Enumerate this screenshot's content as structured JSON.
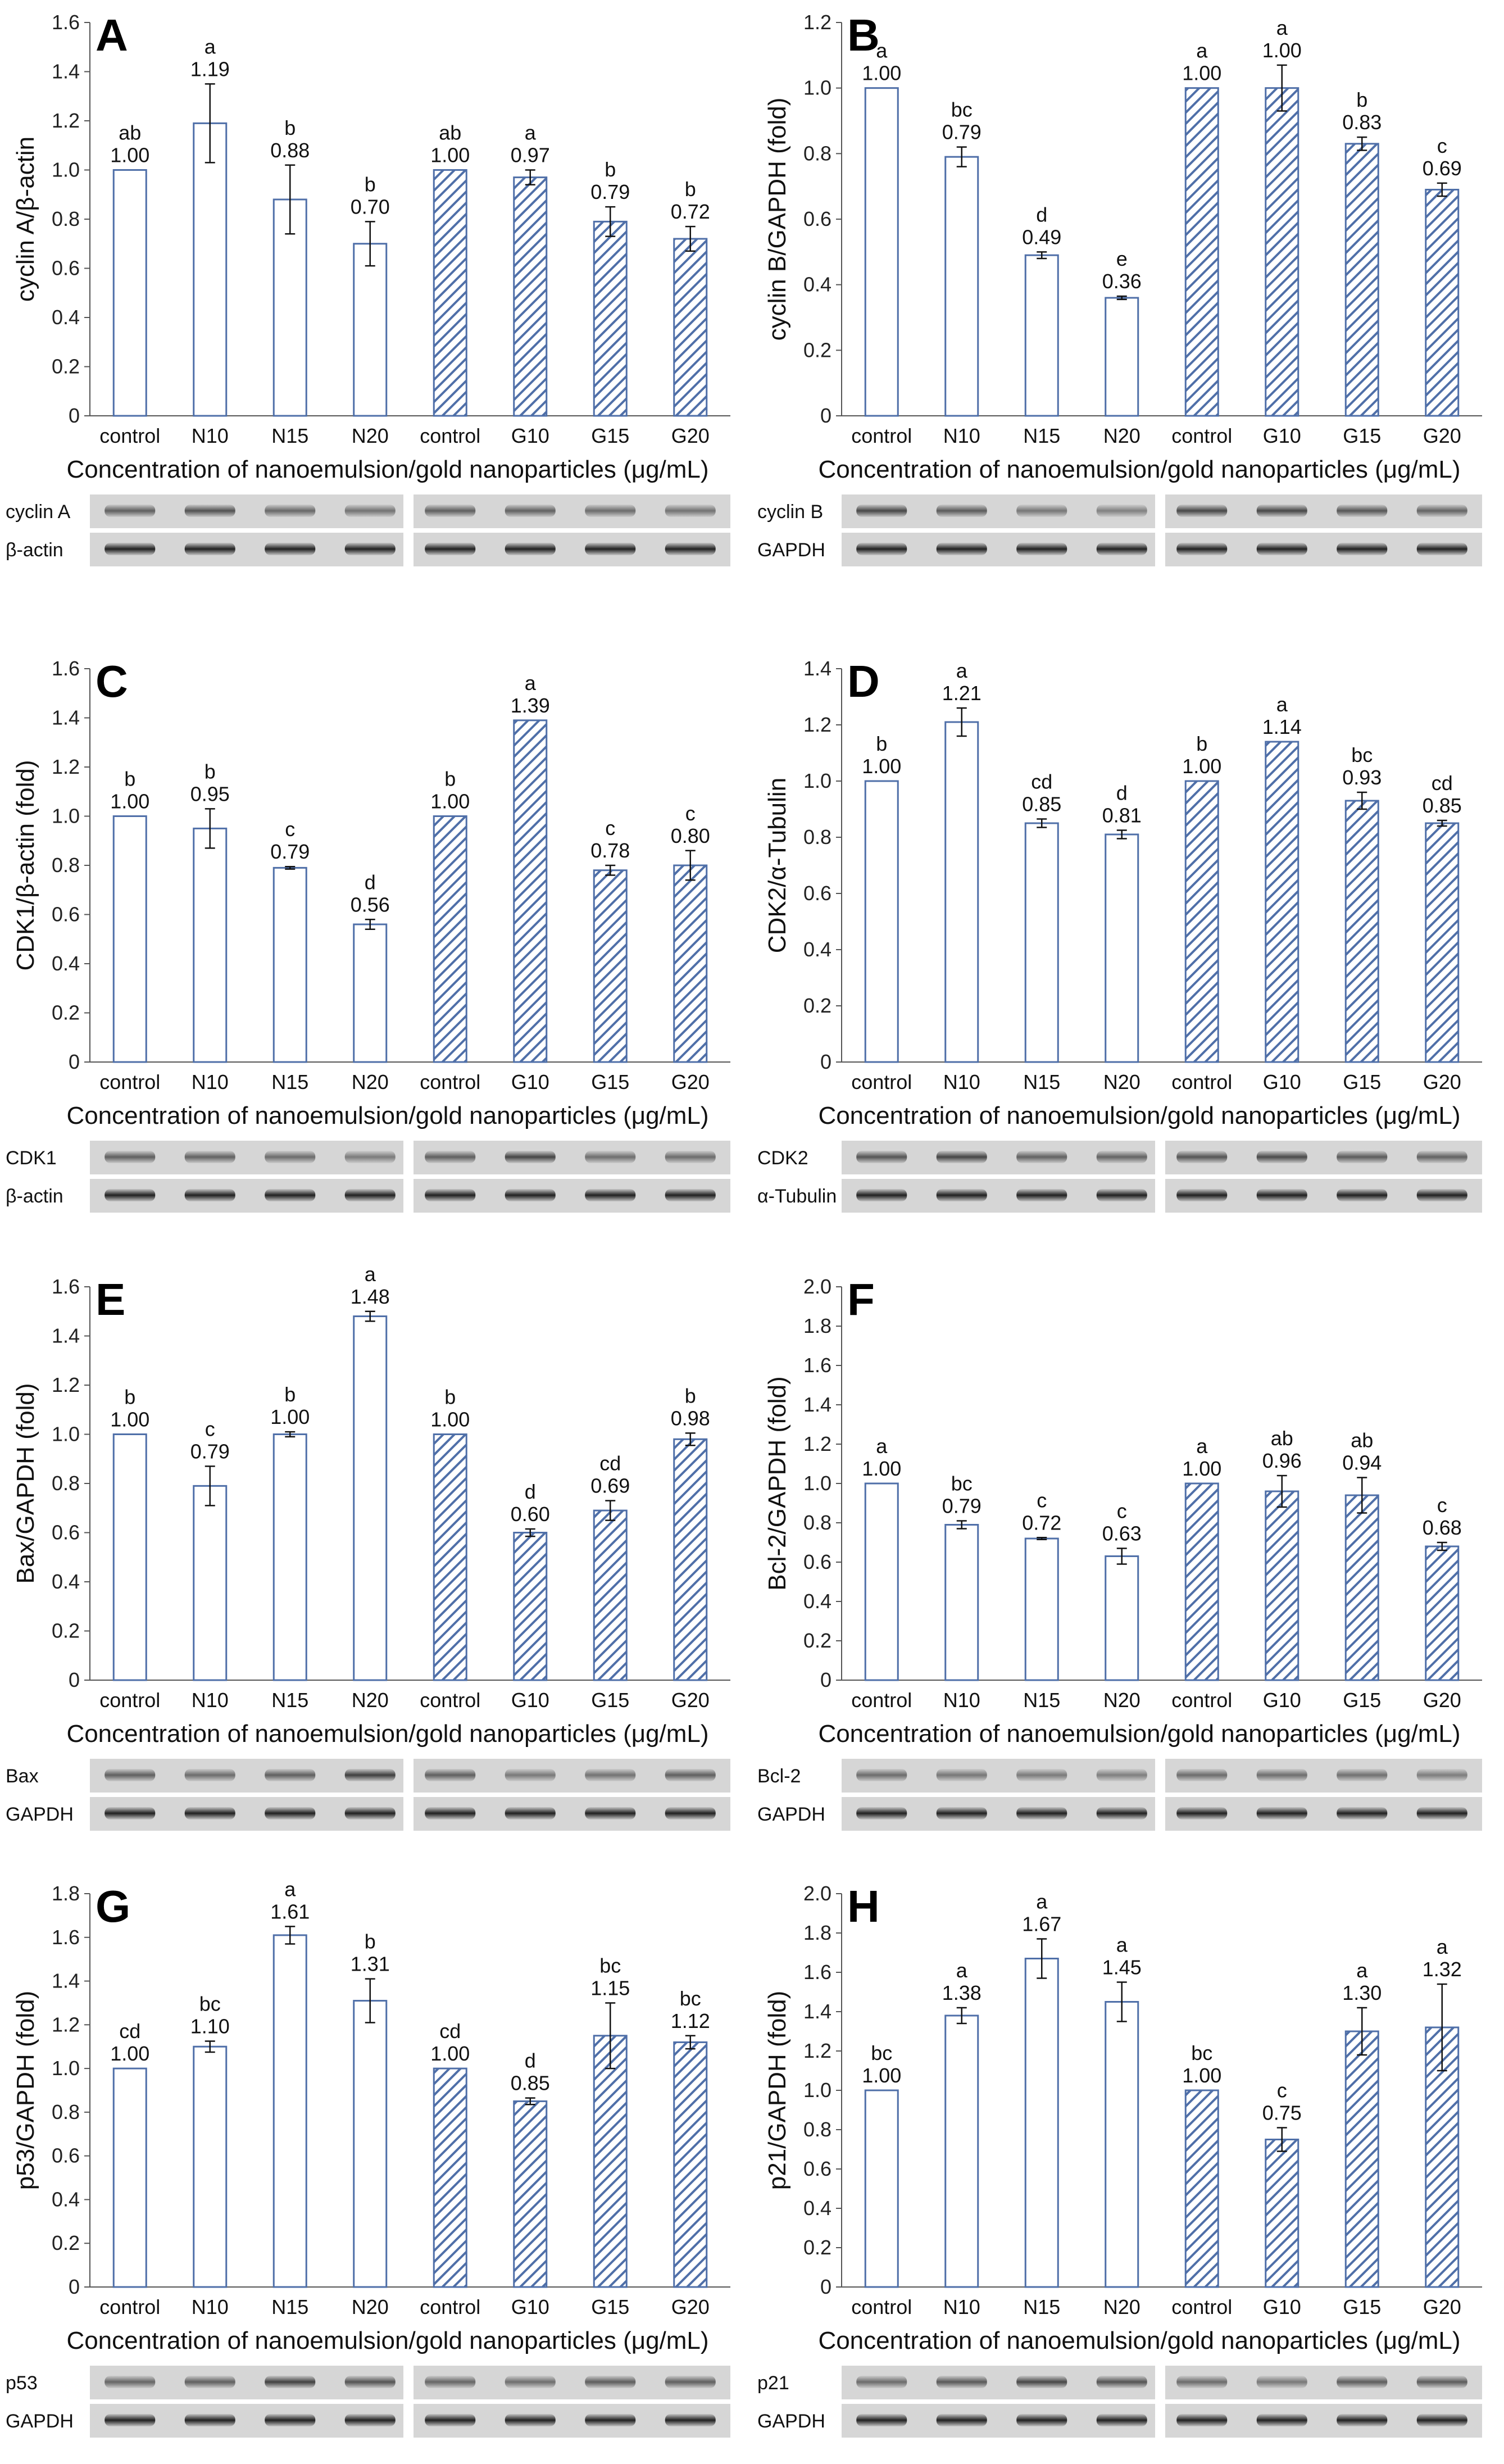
{
  "colors": {
    "bar_edge": "#4f6fa8",
    "hatch": "#4f6fa8",
    "axis": "#555555",
    "text": "#111111"
  },
  "chart_data": [
    {
      "type": "bar",
      "panel": "A",
      "ylabel": "cyclin A/β-actin",
      "xlabel": "Concentration of nanoemulsion/gold nanoparticles (μg/mL)",
      "ylim": [
        0,
        1.6
      ],
      "ytick_labels": [
        "0",
        "0.2",
        "0.4",
        "0.6",
        "0.8",
        "1.0",
        "1.2",
        "1.4",
        "1.6"
      ],
      "categories": [
        "control",
        "N10",
        "N15",
        "N20",
        "control",
        "G10",
        "G15",
        "G20"
      ],
      "values": [
        1.0,
        1.19,
        0.88,
        0.7,
        1.0,
        0.97,
        0.79,
        0.72
      ],
      "value_labels": [
        "1.00",
        "1.19",
        "0.88",
        "0.70",
        "1.00",
        "0.97",
        "0.79",
        "0.72"
      ],
      "errors": [
        0,
        0.16,
        0.14,
        0.09,
        0,
        0.03,
        0.06,
        0.05
      ],
      "significance": [
        "ab",
        "a",
        "b",
        "b",
        "ab",
        "a",
        "b",
        "b"
      ],
      "series": [
        {
          "name": "nanoemulsion",
          "style": "open"
        },
        {
          "name": "gold nanoparticles",
          "style": "hatched"
        }
      ],
      "blot_labels": [
        "cyclin A",
        "β-actin"
      ]
    },
    {
      "type": "bar",
      "panel": "B",
      "ylabel": "cyclin B/GAPDH (fold)",
      "xlabel": "Concentration of nanoemulsion/gold nanoparticles (μg/mL)",
      "ylim": [
        0,
        1.2
      ],
      "ytick_labels": [
        "0",
        "0.2",
        "0.4",
        "0.6",
        "0.8",
        "1.0",
        "1.2"
      ],
      "categories": [
        "control",
        "N10",
        "N15",
        "N20",
        "control",
        "G10",
        "G15",
        "G20"
      ],
      "values": [
        1.0,
        0.79,
        0.49,
        0.36,
        1.0,
        1.0,
        0.83,
        0.69
      ],
      "value_labels": [
        "1.00",
        "0.79",
        "0.49",
        "0.36",
        "1.00",
        "1.00",
        "0.83",
        "0.69"
      ],
      "errors": [
        0,
        0.03,
        0.01,
        0.005,
        0,
        0.07,
        0.02,
        0.02
      ],
      "significance": [
        "a",
        "bc",
        "d",
        "e",
        "a",
        "a",
        "b",
        "c"
      ],
      "series": [
        {
          "name": "nanoemulsion",
          "style": "open"
        },
        {
          "name": "gold nanoparticles",
          "style": "hatched"
        }
      ],
      "blot_labels": [
        "cyclin B",
        "GAPDH"
      ]
    },
    {
      "type": "bar",
      "panel": "C",
      "ylabel": "CDK1/β-actin (fold)",
      "xlabel": "Concentration of nanoemulsion/gold nanoparticles (μg/mL)",
      "ylim": [
        0,
        1.6
      ],
      "ytick_labels": [
        "0",
        "0.2",
        "0.4",
        "0.6",
        "0.8",
        "1.0",
        "1.2",
        "1.4",
        "1.6"
      ],
      "categories": [
        "control",
        "N10",
        "N15",
        "N20",
        "control",
        "G10",
        "G15",
        "G20"
      ],
      "values": [
        1.0,
        0.95,
        0.79,
        0.56,
        1.0,
        1.39,
        0.78,
        0.8
      ],
      "value_labels": [
        "1.00",
        "0.95",
        "0.79",
        "0.56",
        "1.00",
        "1.39",
        "0.78",
        "0.80"
      ],
      "errors": [
        0,
        0.08,
        0.005,
        0.02,
        0,
        0,
        0.02,
        0.06
      ],
      "significance": [
        "b",
        "b",
        "c",
        "d",
        "b",
        "a",
        "c",
        "c"
      ],
      "series": [
        {
          "name": "nanoemulsion",
          "style": "open"
        },
        {
          "name": "gold nanoparticles",
          "style": "hatched"
        }
      ],
      "blot_labels": [
        "CDK1",
        "β-actin"
      ]
    },
    {
      "type": "bar",
      "panel": "D",
      "ylabel": "CDK2/α-Tubulin",
      "xlabel": "Concentration of nanoemulsion/gold nanoparticles (μg/mL)",
      "ylim": [
        0,
        1.4
      ],
      "ytick_labels": [
        "0",
        "0.2",
        "0.4",
        "0.6",
        "0.8",
        "1.0",
        "1.2",
        "1.4"
      ],
      "categories": [
        "control",
        "N10",
        "N15",
        "N20",
        "control",
        "G10",
        "G15",
        "G20"
      ],
      "values": [
        1.0,
        1.21,
        0.85,
        0.81,
        1.0,
        1.14,
        0.93,
        0.85
      ],
      "value_labels": [
        "1.00",
        "1.21",
        "0.85",
        "0.81",
        "1.00",
        "1.14",
        "0.93",
        "0.85"
      ],
      "errors": [
        0,
        0.05,
        0.015,
        0.015,
        0,
        0,
        0.03,
        0.01
      ],
      "significance": [
        "b",
        "a",
        "cd",
        "d",
        "b",
        "a",
        "bc",
        "cd"
      ],
      "series": [
        {
          "name": "nanoemulsion",
          "style": "open"
        },
        {
          "name": "gold nanoparticles",
          "style": "hatched"
        }
      ],
      "blot_labels": [
        "CDK2",
        "α-Tubulin"
      ]
    },
    {
      "type": "bar",
      "panel": "E",
      "ylabel": "Bax/GAPDH (fold)",
      "xlabel": "Concentration of nanoemulsion/gold nanoparticles (μg/mL)",
      "ylim": [
        0,
        1.6
      ],
      "ytick_labels": [
        "0",
        "0.2",
        "0.4",
        "0.6",
        "0.8",
        "1.0",
        "1.2",
        "1.4",
        "1.6"
      ],
      "categories": [
        "control",
        "N10",
        "N15",
        "N20",
        "control",
        "G10",
        "G15",
        "G20"
      ],
      "values": [
        1.0,
        0.79,
        1.0,
        1.48,
        1.0,
        0.6,
        0.69,
        0.98
      ],
      "value_labels": [
        "1.00",
        "0.79",
        "1.00",
        "1.48",
        "1.00",
        "0.60",
        "0.69",
        "0.98"
      ],
      "errors": [
        0,
        0.08,
        0.01,
        0.02,
        0,
        0.015,
        0.04,
        0.025
      ],
      "significance": [
        "b",
        "c",
        "b",
        "a",
        "b",
        "d",
        "cd",
        "b"
      ],
      "series": [
        {
          "name": "nanoemulsion",
          "style": "open"
        },
        {
          "name": "gold nanoparticles",
          "style": "hatched"
        }
      ],
      "blot_labels": [
        "Bax",
        "GAPDH"
      ]
    },
    {
      "type": "bar",
      "panel": "F",
      "ylabel": "Bcl-2/GAPDH (fold)",
      "xlabel": "Concentration of nanoemulsion/gold nanoparticles (μg/mL)",
      "ylim": [
        0,
        2.0
      ],
      "ytick_labels": [
        "0",
        "0.2",
        "0.4",
        "0.6",
        "0.8",
        "1.0",
        "1.2",
        "1.4",
        "1.6",
        "1.8",
        "2.0"
      ],
      "categories": [
        "control",
        "N10",
        "N15",
        "N20",
        "control",
        "G10",
        "G15",
        "G20"
      ],
      "values": [
        1.0,
        0.79,
        0.72,
        0.63,
        1.0,
        0.96,
        0.94,
        0.68
      ],
      "value_labels": [
        "1.00",
        "0.79",
        "0.72",
        "0.63",
        "1.00",
        "0.96",
        "0.94",
        "0.68"
      ],
      "errors": [
        0,
        0.02,
        0.005,
        0.04,
        0,
        0.08,
        0.09,
        0.02
      ],
      "significance": [
        "a",
        "bc",
        "c",
        "c",
        "a",
        "ab",
        "ab",
        "c"
      ],
      "series": [
        {
          "name": "nanoemulsion",
          "style": "open"
        },
        {
          "name": "gold nanoparticles",
          "style": "hatched"
        }
      ],
      "blot_labels": [
        "Bcl-2",
        "GAPDH"
      ]
    },
    {
      "type": "bar",
      "panel": "G",
      "ylabel": "p53/GAPDH (fold)",
      "xlabel": "Concentration of nanoemulsion/gold nanoparticles (μg/mL)",
      "ylim": [
        0,
        1.8
      ],
      "ytick_labels": [
        "0",
        "0.2",
        "0.4",
        "0.6",
        "0.8",
        "1.0",
        "1.2",
        "1.4",
        "1.6",
        "1.8"
      ],
      "categories": [
        "control",
        "N10",
        "N15",
        "N20",
        "control",
        "G10",
        "G15",
        "G20"
      ],
      "values": [
        1.0,
        1.1,
        1.61,
        1.31,
        1.0,
        0.85,
        1.15,
        1.12
      ],
      "value_labels": [
        "1.00",
        "1.10",
        "1.61",
        "1.31",
        "1.00",
        "0.85",
        "1.15",
        "1.12"
      ],
      "errors": [
        0,
        0.025,
        0.04,
        0.1,
        0,
        0.015,
        0.15,
        0.03
      ],
      "significance": [
        "cd",
        "bc",
        "a",
        "b",
        "cd",
        "d",
        "bc",
        "bc"
      ],
      "series": [
        {
          "name": "nanoemulsion",
          "style": "open"
        },
        {
          "name": "gold nanoparticles",
          "style": "hatched"
        }
      ],
      "blot_labels": [
        "p53",
        "GAPDH"
      ]
    },
    {
      "type": "bar",
      "panel": "H",
      "ylabel": "p21/GAPDH (fold)",
      "xlabel": "Concentration of nanoemulsion/gold nanoparticles (μg/mL)",
      "ylim": [
        0,
        2.0
      ],
      "ytick_labels": [
        "0",
        "0.2",
        "0.4",
        "0.6",
        "0.8",
        "1.0",
        "1.2",
        "1.4",
        "1.6",
        "1.8",
        "2.0"
      ],
      "categories": [
        "control",
        "N10",
        "N15",
        "N20",
        "control",
        "G10",
        "G15",
        "G20"
      ],
      "values": [
        1.0,
        1.38,
        1.67,
        1.45,
        1.0,
        0.75,
        1.3,
        1.32
      ],
      "value_labels": [
        "1.00",
        "1.38",
        "1.67",
        "1.45",
        "1.00",
        "0.75",
        "1.30",
        "1.32"
      ],
      "errors": [
        0,
        0.04,
        0.1,
        0.1,
        0,
        0.06,
        0.12,
        0.22
      ],
      "significance": [
        "bc",
        "a",
        "a",
        "a",
        "bc",
        "c",
        "a",
        "a"
      ],
      "series": [
        {
          "name": "nanoemulsion",
          "style": "open"
        },
        {
          "name": "gold nanoparticles",
          "style": "hatched"
        }
      ],
      "blot_labels": [
        "p21",
        "GAPDH"
      ]
    }
  ]
}
